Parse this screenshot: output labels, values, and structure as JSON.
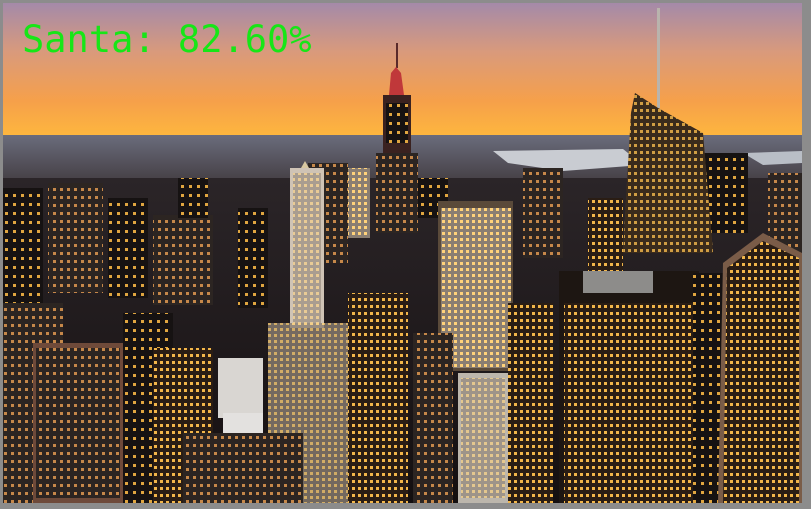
{
  "overlay": {
    "label_text": "Santa: 82.60%",
    "label_color": "#17e617"
  },
  "scene": {
    "description_icon": "city-skyline-photo",
    "palette": {
      "sky_top": "#b98aa6",
      "sky_mid": "#f2a25a",
      "sky_horizon": "#ffb23a",
      "haze": "#8e8f97",
      "water": "#b9c0c9",
      "city_dark": "#1c1a1c",
      "window_light": "#ffcc55"
    }
  }
}
